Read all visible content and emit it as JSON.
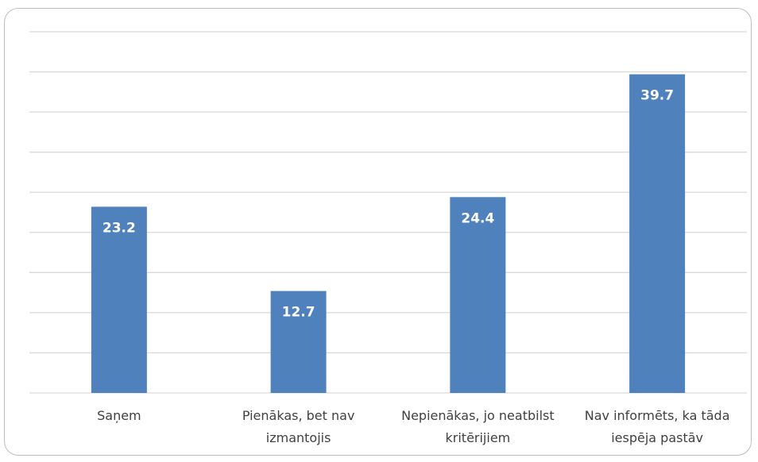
{
  "chart_data": {
    "type": "bar",
    "categories": [
      "Saņem",
      "Pienākas, bet nav izmantojis",
      "Nepienākas, jo neatbilst kritērijiem",
      "Nav informēts, ka tāda iespēja pastāv"
    ],
    "values": [
      23.2,
      12.7,
      24.4,
      39.7
    ],
    "color": "#4f81bd",
    "ylim": [
      0,
      45
    ],
    "yticks": [
      0,
      5,
      10,
      15,
      20,
      25,
      30,
      35,
      40,
      45
    ],
    "grid": true
  }
}
